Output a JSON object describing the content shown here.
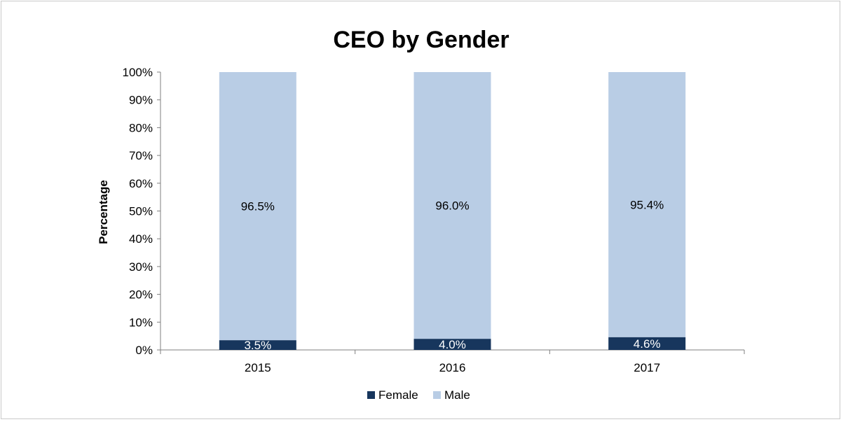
{
  "chart_data": {
    "type": "bar",
    "stacked": "percent",
    "title": "CEO by Gender",
    "xlabel": "",
    "ylabel": "Percentage",
    "categories": [
      "2015",
      "2016",
      "2017"
    ],
    "series": [
      {
        "name": "Female",
        "values": [
          3.5,
          4.0,
          4.6
        ],
        "labels": [
          "3.5%",
          "4.0%",
          "4.6%"
        ],
        "color": "#17365d",
        "label_color": "#ffffff"
      },
      {
        "name": "Male",
        "values": [
          96.5,
          96.0,
          95.4
        ],
        "labels": [
          "96.5%",
          "96.0%",
          "95.4%"
        ],
        "color": "#b9cde5",
        "label_color": "#000000"
      }
    ],
    "ylim": [
      0,
      100
    ],
    "ytick_values": [
      0,
      10,
      20,
      30,
      40,
      50,
      60,
      70,
      80,
      90,
      100
    ],
    "ytick_labels": [
      "0%",
      "10%",
      "20%",
      "30%",
      "40%",
      "50%",
      "60%",
      "70%",
      "80%",
      "90%",
      "100%"
    ],
    "grid": false,
    "legend_position": "bottom"
  }
}
